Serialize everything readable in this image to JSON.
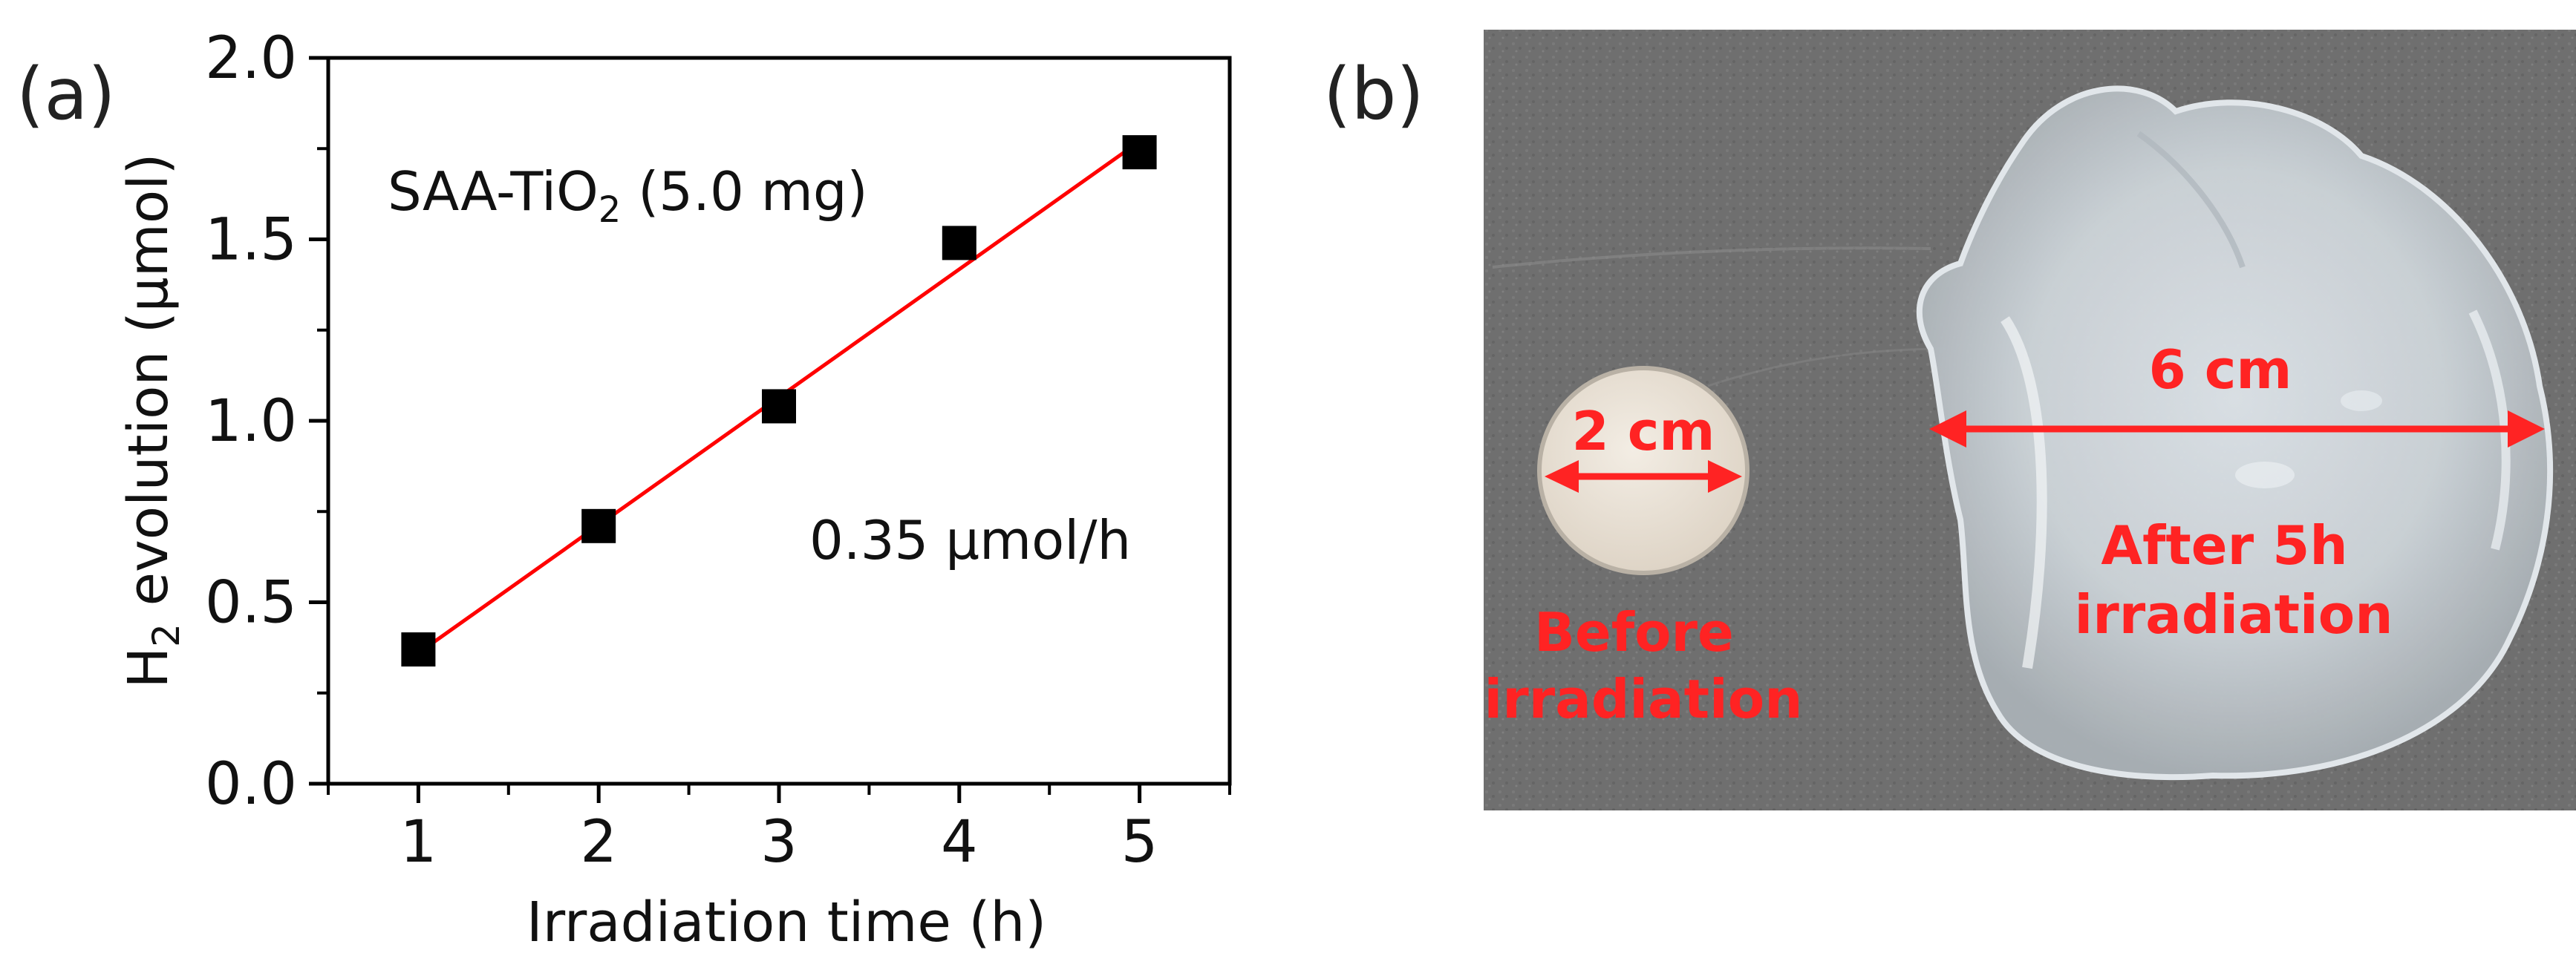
{
  "panels": {
    "a": {
      "label": "(a)"
    },
    "b": {
      "label": "(b)"
    }
  },
  "chart_data": {
    "type": "scatter",
    "title": "",
    "xlabel": "Irradiation time (h)",
    "ylabel": {
      "prefix": "H",
      "sub": "2",
      "rest": " evolution (μmol)"
    },
    "xlim": [
      0.5,
      5.5
    ],
    "ylim": [
      0.0,
      2.0
    ],
    "x_ticks": [
      1,
      2,
      3,
      4,
      5
    ],
    "x_tick_labels": [
      "1",
      "2",
      "3",
      "4",
      "5"
    ],
    "y_ticks": [
      0.0,
      0.5,
      1.0,
      1.5,
      2.0
    ],
    "y_tick_labels": [
      "0.0",
      "0.5",
      "1.0",
      "1.5",
      "2.0"
    ],
    "grid": false,
    "series": [
      {
        "x": [
          1,
          2,
          3,
          4,
          5
        ],
        "y": [
          0.37,
          0.71,
          1.04,
          1.49,
          1.74
        ],
        "marker": "square",
        "color": "#000000"
      }
    ],
    "fit_line": {
      "x": [
        1,
        5
      ],
      "y": [
        0.36,
        1.77
      ],
      "color": "#ff0000"
    },
    "annotations": {
      "sample": {
        "prefix": "SAA-TiO",
        "sub": "2",
        "rest": " (5.0 mg)"
      },
      "rate": "0.35 μmol/h"
    }
  },
  "photo": {
    "small_disc": {
      "measure": "2 cm",
      "caption_lines": [
        "Before",
        "irradiation"
      ]
    },
    "large_gel": {
      "measure": "6 cm",
      "caption_lines": [
        "After 5h",
        "irradiation"
      ]
    },
    "colors": {
      "background": "#6f6f6f",
      "annotation": "#ff2323",
      "disc": "#ece4d8",
      "gel": "#c9ced3"
    }
  }
}
